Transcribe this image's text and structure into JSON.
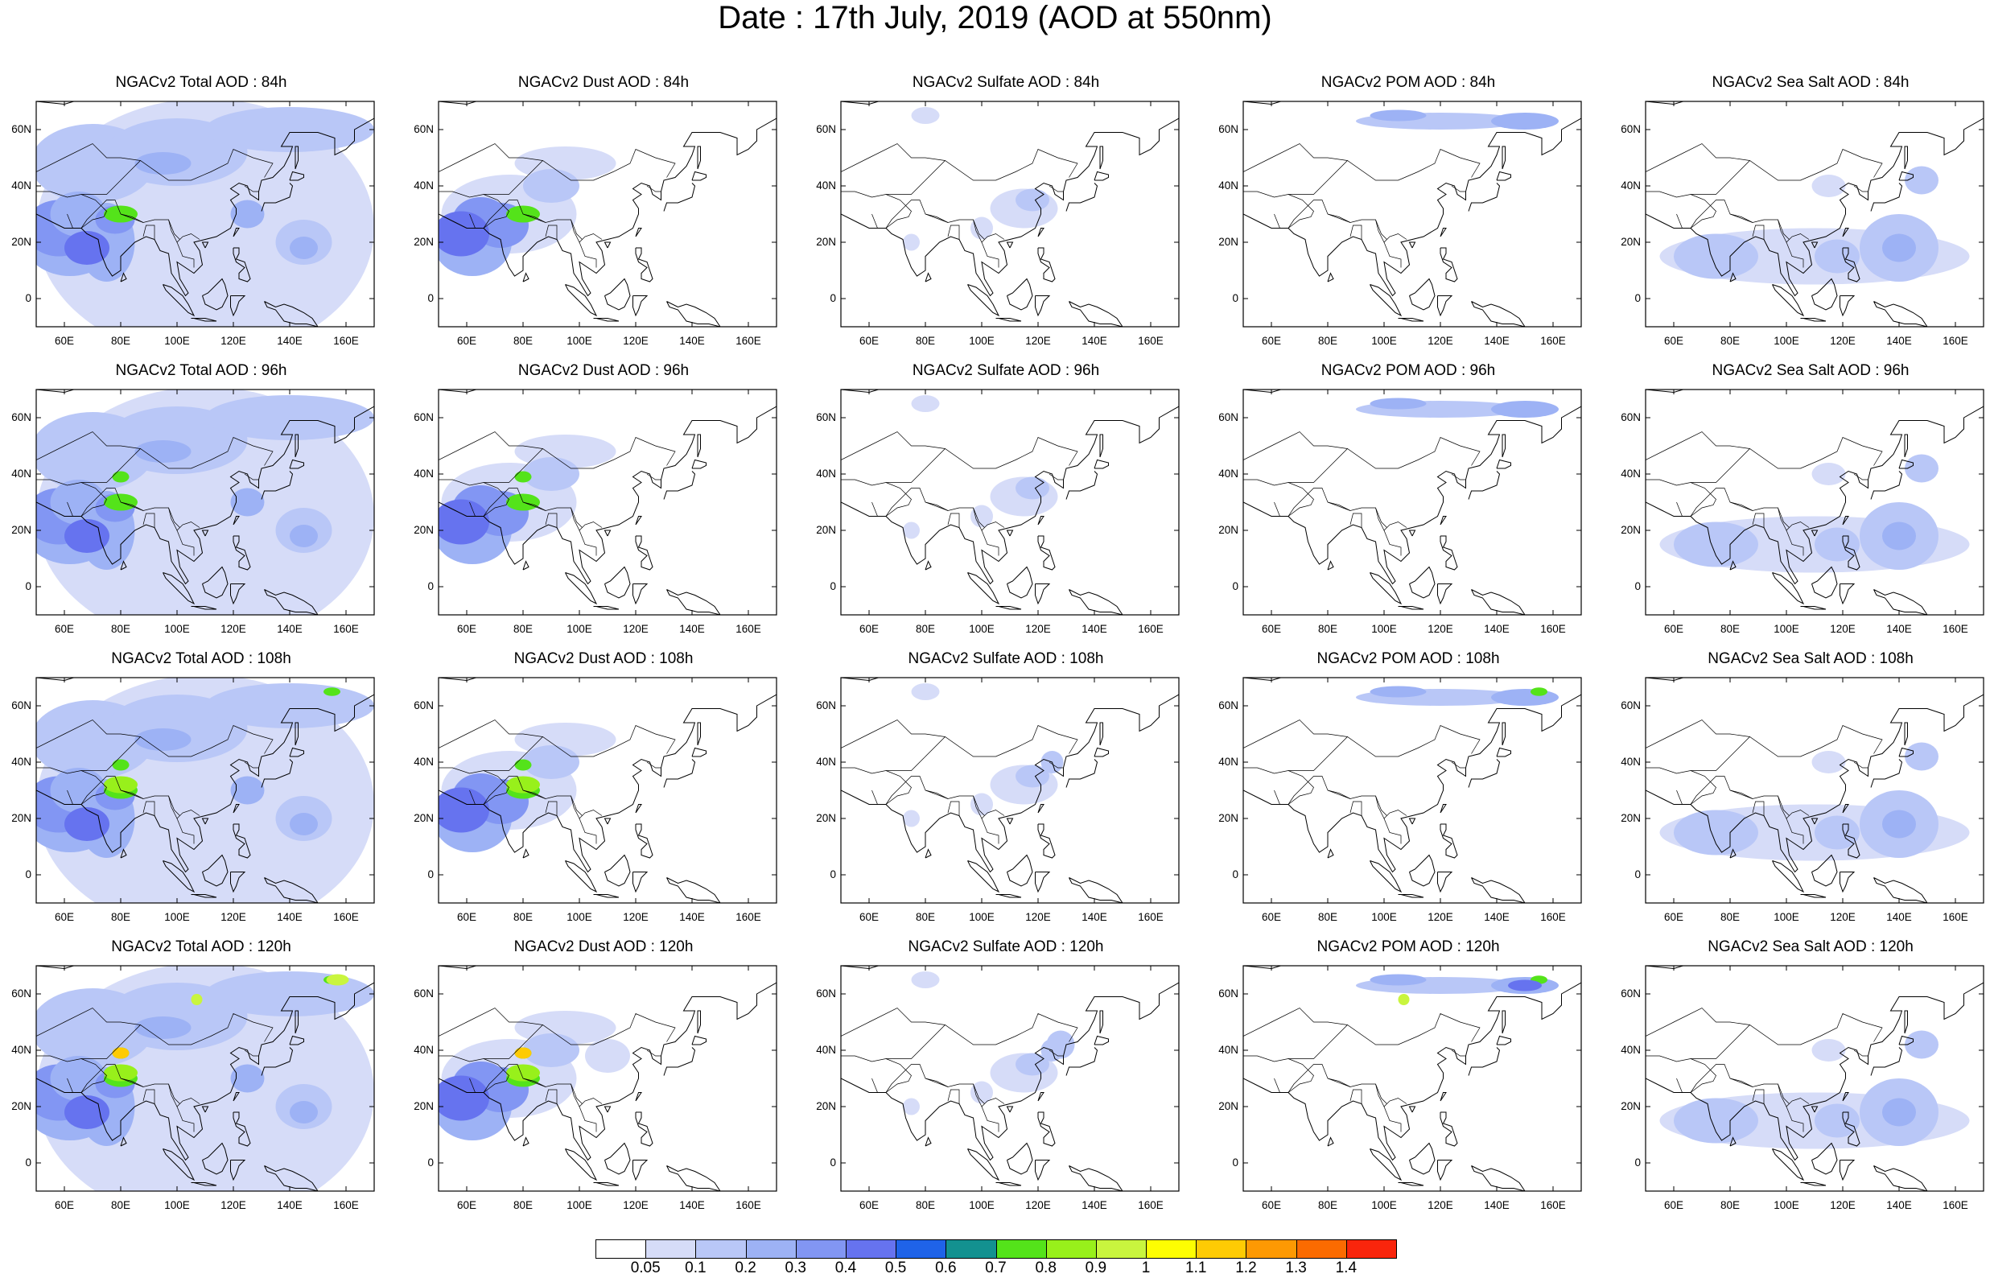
{
  "title": "Date : 17th July, 2019 (AOD at 550nm)",
  "axes": {
    "x_ticks": [
      "60E",
      "80E",
      "100E",
      "120E",
      "140E",
      "160E"
    ],
    "y_ticks": [
      "60N",
      "40N",
      "20N",
      "0"
    ]
  },
  "panels": [
    {
      "title": "NGACv2 Total AOD : 84h",
      "species": "total",
      "hour": 84
    },
    {
      "title": "NGACv2 Dust AOD : 84h",
      "species": "dust",
      "hour": 84
    },
    {
      "title": "NGACv2 Sulfate AOD : 84h",
      "species": "sulfate",
      "hour": 84
    },
    {
      "title": "NGACv2 POM AOD : 84h",
      "species": "pom",
      "hour": 84
    },
    {
      "title": "NGACv2 Sea Salt AOD : 84h",
      "species": "seasalt",
      "hour": 84
    },
    {
      "title": "NGACv2 Total AOD : 96h",
      "species": "total",
      "hour": 96
    },
    {
      "title": "NGACv2 Dust AOD : 96h",
      "species": "dust",
      "hour": 96
    },
    {
      "title": "NGACv2 Sulfate AOD : 96h",
      "species": "sulfate",
      "hour": 96
    },
    {
      "title": "NGACv2 POM AOD : 96h",
      "species": "pom",
      "hour": 96
    },
    {
      "title": "NGACv2 Sea Salt AOD : 96h",
      "species": "seasalt",
      "hour": 96
    },
    {
      "title": "NGACv2 Total AOD : 108h",
      "species": "total",
      "hour": 108
    },
    {
      "title": "NGACv2 Dust AOD : 108h",
      "species": "dust",
      "hour": 108
    },
    {
      "title": "NGACv2 Sulfate AOD : 108h",
      "species": "sulfate",
      "hour": 108
    },
    {
      "title": "NGACv2 POM AOD : 108h",
      "species": "pom",
      "hour": 108
    },
    {
      "title": "NGACv2 Sea Salt AOD : 108h",
      "species": "seasalt",
      "hour": 108
    },
    {
      "title": "NGACv2 Total AOD : 120h",
      "species": "total",
      "hour": 120
    },
    {
      "title": "NGACv2 Dust AOD : 120h",
      "species": "dust",
      "hour": 120
    },
    {
      "title": "NGACv2 Sulfate AOD : 120h",
      "species": "sulfate",
      "hour": 120
    },
    {
      "title": "NGACv2 POM AOD : 120h",
      "species": "pom",
      "hour": 120
    },
    {
      "title": "NGACv2 Sea Salt  AOD : 120h",
      "species": "seasalt",
      "hour": 120
    }
  ],
  "colorbar": {
    "labels": [
      "0.05",
      "0.1",
      "0.2",
      "0.3",
      "0.4",
      "0.5",
      "0.6",
      "0.7",
      "0.8",
      "0.9",
      "1",
      "1.1",
      "1.2",
      "1.3",
      "1.4"
    ],
    "colors": [
      "#ffffff",
      "#d6dcf8",
      "#b9c7f7",
      "#9db2f5",
      "#8296f3",
      "#6673ef",
      "#1f63e8",
      "#139190",
      "#54e31a",
      "#98f01b",
      "#c9f53e",
      "#fdfd02",
      "#fecb04",
      "#fd9903",
      "#fb6b01",
      "#f9250c"
    ]
  }
}
